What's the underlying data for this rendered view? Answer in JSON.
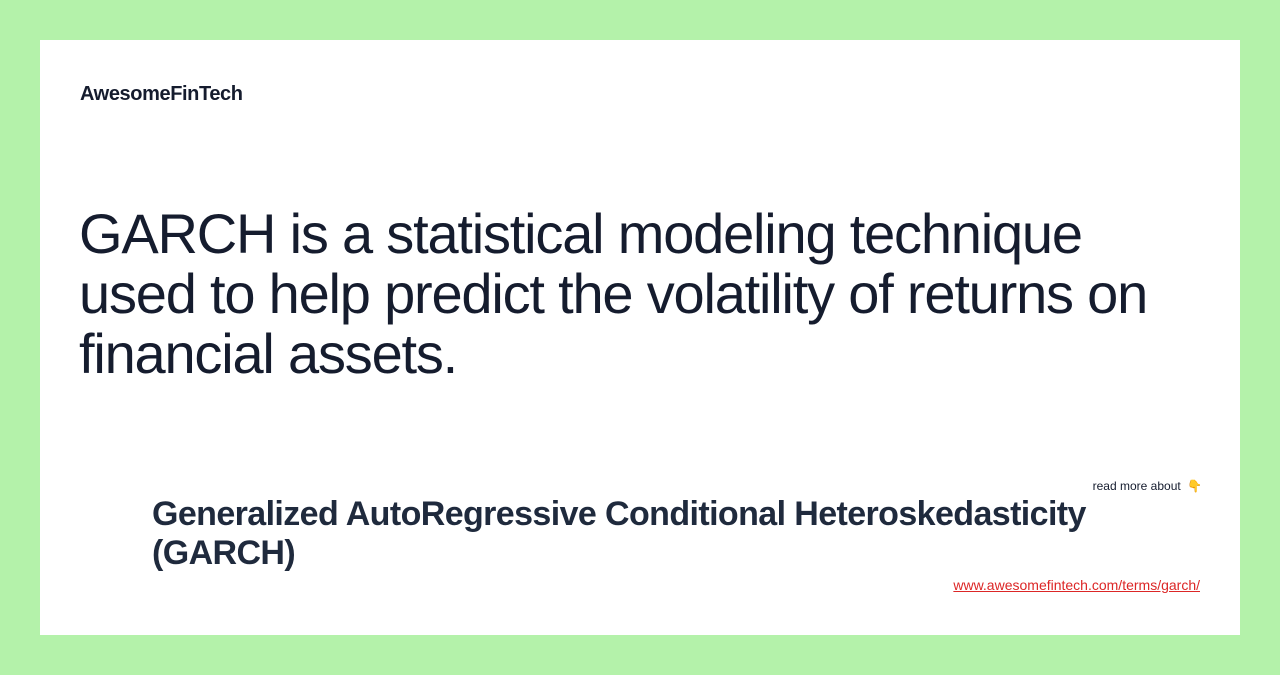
{
  "brand": {
    "name": "AwesomeFinTech"
  },
  "definition": {
    "text": "GARCH is a statistical modeling technique used to help predict the volatility of returns on financial assets."
  },
  "read_more": {
    "label": "read more about",
    "icon": "pointing-down-icon",
    "icon_glyph": "👇"
  },
  "term": {
    "title": "Generalized AutoRegressive Conditional Heteroskedasticity (GARCH)",
    "url": "www.awesomefintech.com/terms/garch/"
  },
  "colors": {
    "page_background": "#b4f2aa",
    "card_background": "#ffffff",
    "text": "#151c2e",
    "link": "#dc2626"
  }
}
